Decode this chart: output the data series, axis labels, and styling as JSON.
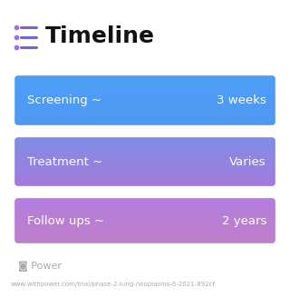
{
  "title": "Timeline",
  "title_fontsize": 18,
  "title_fontweight": "bold",
  "title_color": "#111111",
  "background_color": "#ffffff",
  "rows": [
    {
      "label": "Screening ~",
      "value": "3 weeks",
      "grad_top": "#4D9EF8",
      "grad_bot": "#5098F0"
    },
    {
      "label": "Treatment ~",
      "value": "Varies",
      "grad_top": "#7B8FE8",
      "grad_bot": "#A878D8"
    },
    {
      "label": "Follow ups ~",
      "value": "2 years",
      "grad_top": "#B07DE0",
      "grad_bot": "#C080C8"
    }
  ],
  "icon_color": "#7B5FD8",
  "icon_dot_color": "#9B6FE8",
  "footer_text": "www.withpower.com/trial/phase-2-lung-neoplasms-6-2021-892cf",
  "footer_color": "#AAAAAA",
  "footer_fontsize": 5.0,
  "power_color": "#AAAAAA",
  "power_fontsize": 8,
  "label_fontsize": 9.5,
  "value_fontsize": 9.5
}
